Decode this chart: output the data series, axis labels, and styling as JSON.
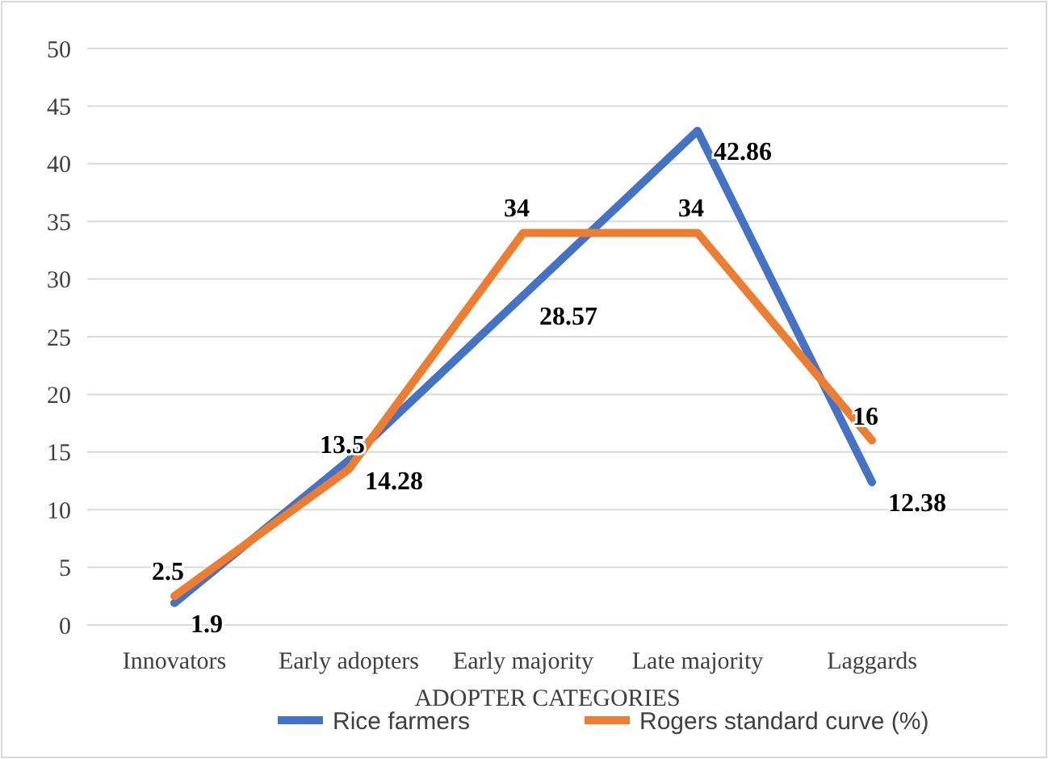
{
  "chart_data": {
    "type": "line",
    "xlabel": "ADOPTER CATEGORIES",
    "categories": [
      "Innovators",
      "Early adopters",
      "Early majority",
      "Late majority",
      "Laggards"
    ],
    "series": [
      {
        "name": "Rice farmers",
        "color": "#4472c4",
        "values": [
          1.9,
          14.28,
          28.57,
          42.86,
          12.38
        ]
      },
      {
        "name": "Rogers standard curve (%)",
        "color": "#ed7d31",
        "values": [
          2.5,
          13.5,
          34,
          34,
          16
        ]
      }
    ],
    "ylim": [
      0,
      50
    ],
    "yticks": [
      0,
      5,
      10,
      15,
      20,
      25,
      30,
      35,
      40,
      45,
      50
    ],
    "grid": "y",
    "legend": "bottom",
    "data_labels": true,
    "marker": "none",
    "line_style": "solid"
  }
}
